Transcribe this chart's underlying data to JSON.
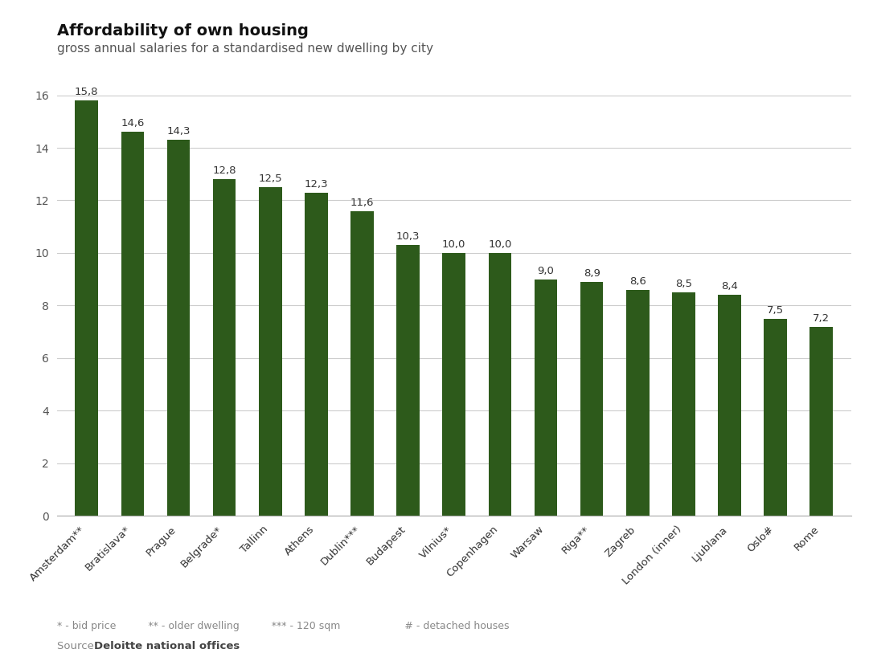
{
  "title": "Affordability of own housing",
  "subtitle": "gross annual salaries for a standardised new dwelling by city",
  "categories": [
    "Amsterdam**",
    "Bratislava*",
    "Prague",
    "Belgrade*",
    "Tallinn",
    "Athens",
    "Dublin***",
    "Budapest",
    "Vilnius*",
    "Copenhagen",
    "Warsaw",
    "Riga**",
    "Zagreb",
    "London (inner)",
    "Ljublana",
    "Oslo#",
    "Rome"
  ],
  "values": [
    15.8,
    14.6,
    14.3,
    12.8,
    12.5,
    12.3,
    11.6,
    10.3,
    10.0,
    10.0,
    9.0,
    8.9,
    8.6,
    8.5,
    8.4,
    7.5,
    7.2
  ],
  "bar_color": "#2d5a1b",
  "background_color": "#ffffff",
  "ylim": [
    0,
    17
  ],
  "yticks": [
    0,
    2,
    4,
    6,
    8,
    10,
    12,
    14,
    16
  ],
  "footnote_parts": [
    {
      "text": "* - bid price",
      "bold": false
    },
    {
      "text": "          ** - older dwelling",
      "bold": false
    },
    {
      "text": "          *** - 120 sqm                    # - detached houses",
      "bold": false
    }
  ],
  "source_label": "Source: ",
  "source_bold": "Deloitte national offices",
  "value_labels": [
    "15,8",
    "14,6",
    "14,3",
    "12,8",
    "12,5",
    "12,3",
    "11,6",
    "10,3",
    "10,0",
    "10,0",
    "9,0",
    "8,9",
    "8,6",
    "8,5",
    "8,4",
    "7,5",
    "7,2"
  ],
  "title_fontsize": 14,
  "subtitle_fontsize": 11,
  "bar_width": 0.5,
  "grid_color": "#cccccc",
  "tick_label_color": "#555555",
  "value_label_color": "#333333",
  "footnote_color": "#888888",
  "spine_bottom_color": "#aaaaaa"
}
